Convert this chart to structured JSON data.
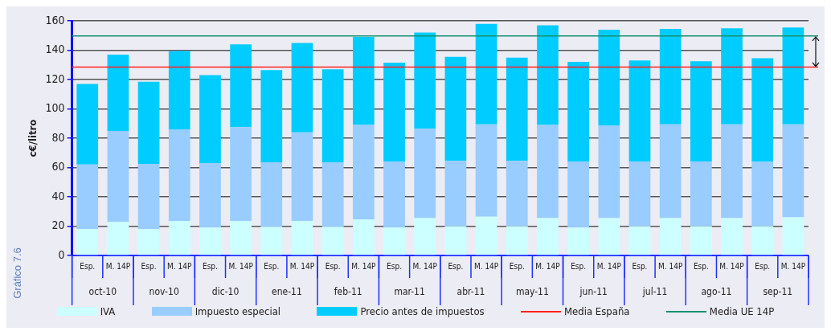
{
  "chart_data": {
    "type": "bar",
    "stacked": true,
    "ylabel": "c€/litro",
    "categories": [
      "Esp.",
      "M. 14P",
      "Esp.",
      "M. 14P",
      "Esp.",
      "M. 14P",
      "Esp.",
      "M. 14P",
      "Esp.",
      "M. 14P",
      "Esp.",
      "M. 14P",
      "Esp.",
      "M. 14P",
      "Esp.",
      "M. 14P",
      "Esp.",
      "M. 14P",
      "Esp.",
      "M. 14P",
      "Esp.",
      "M. 14P",
      "Esp.",
      "M. 14P"
    ],
    "series": [
      {
        "name": "IVA",
        "color": "#ccffff",
        "values": [
          18,
          23,
          18,
          23.5,
          19,
          23.5,
          19.5,
          23.5,
          19.5,
          24.5,
          19,
          25.5,
          20,
          26.5,
          20,
          25.5,
          19,
          25.5,
          20,
          25.5,
          20,
          25.5,
          20,
          26
        ]
      },
      {
        "name": "Impuesto especial",
        "color": "#99ccff",
        "values": [
          44,
          62,
          44.5,
          62.5,
          44,
          64,
          44,
          60.5,
          44,
          64.5,
          45,
          61,
          44.5,
          63,
          44.5,
          63.5,
          45,
          63,
          44,
          64,
          44,
          64,
          44,
          63.5
        ]
      },
      {
        "name": "Precio antes de impuestos",
        "color": "#00ccff",
        "values": [
          55,
          52,
          56,
          53.5,
          60,
          56.5,
          63,
          61,
          63.5,
          60,
          67.5,
          65.5,
          71,
          68.5,
          70.5,
          68,
          68,
          65.5,
          69,
          65,
          68.5,
          65.5,
          70.5,
          66
        ]
      }
    ],
    "ylim": [
      0,
      160
    ],
    "yticks": [
      0,
      20,
      40,
      60,
      80,
      100,
      120,
      140,
      160
    ],
    "grid": "y",
    "legend": "bottom",
    "ref_lines": [
      {
        "axis": "y",
        "value": 128.5,
        "label": "Media España",
        "color": "#ff2020"
      },
      {
        "axis": "y",
        "value": 149.7,
        "label": "Media UE 14P",
        "color": "#109070"
      }
    ],
    "annotations": [
      "oct-10",
      "nov-10",
      "dic-10",
      "ene-11",
      "feb-11",
      "mar-11",
      "abr-11",
      "may-11",
      "jun-11",
      "jul-11",
      "ago-11",
      "sep-11",
      "Gráfico 7.6"
    ]
  }
}
